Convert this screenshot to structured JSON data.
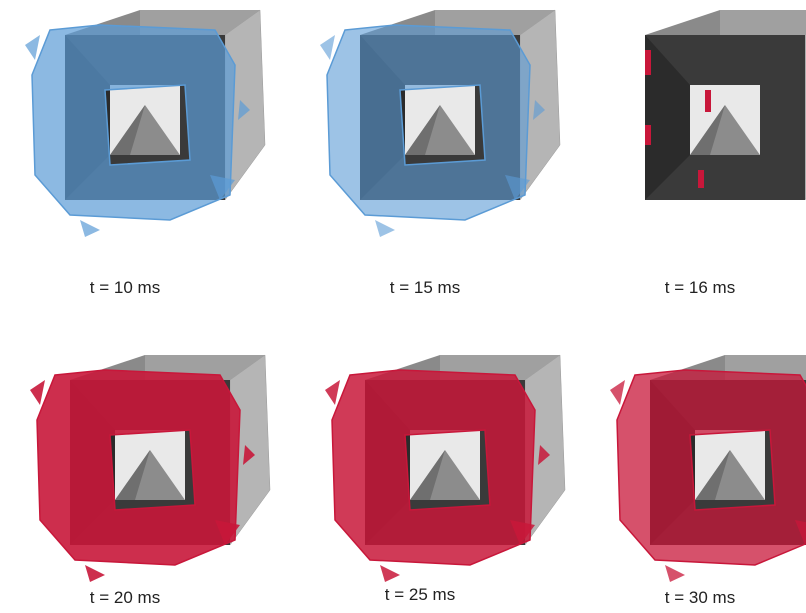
{
  "panels": [
    {
      "caption": "t = 10 ms"
    },
    {
      "caption": "t = 15 ms"
    },
    {
      "caption": "t = 16 ms"
    },
    {
      "caption": "t = 20 ms"
    },
    {
      "caption": "t = 25 ms"
    },
    {
      "caption": "t = 30 ms"
    }
  ]
}
